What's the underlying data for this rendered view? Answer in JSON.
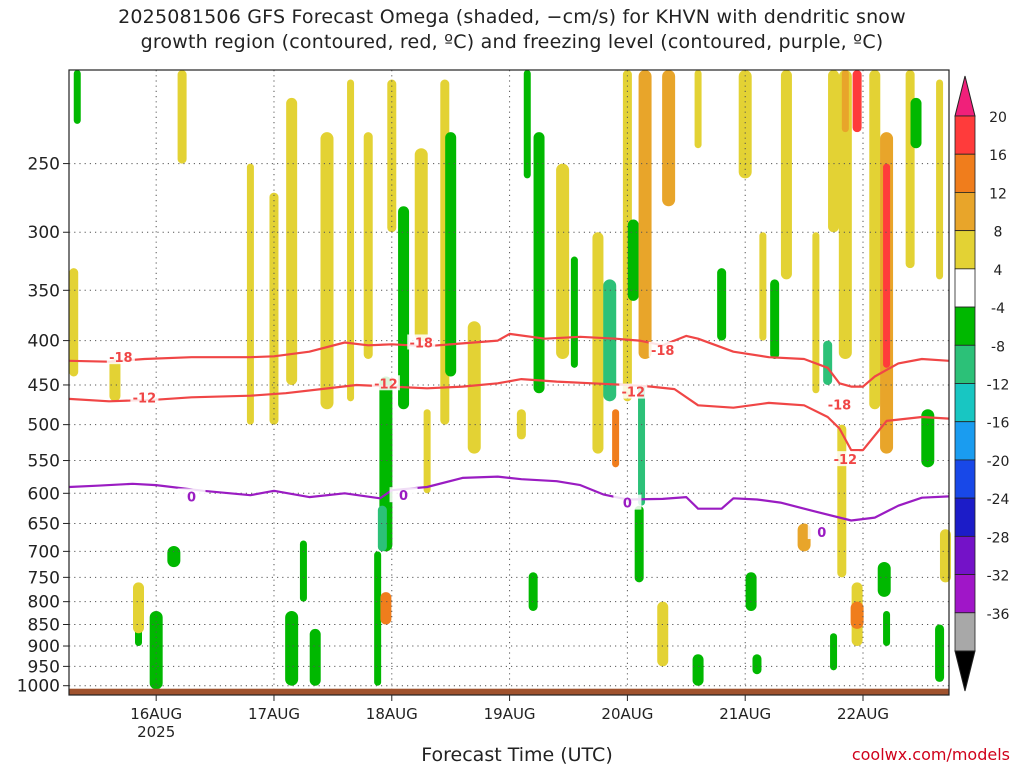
{
  "header": {
    "title_line_1": "2025081506 GFS Forecast Omega (shaded, −cm/s) for KHVN with dendritic snow",
    "title_line_2": "growth region (contoured, red, ºC) and freezing level (contoured, purple, ºC)"
  },
  "footer": {
    "xlabel": "Forecast Time (UTC)",
    "credit": "coolwx.com/models"
  },
  "colors": {
    "temp_contour": "#f04646",
    "freezing_contour": "#9a1cc2",
    "ground": "#a0522d"
  },
  "chart_data": {
    "type": "heatmap",
    "title": "2025081506 GFS Forecast Omega (shaded, −cm/s) for KHVN with dendritic snow growth region (contoured, red, ºC) and freezing level (contoured, purple, ºC)",
    "xlabel": "Forecast Time (UTC)",
    "ylabel": "",
    "x_range_day": [
      15.26,
      22.73
    ],
    "x_ticks": [
      {
        "day": 16,
        "label": "16AUG",
        "sub": "2025"
      },
      {
        "day": 17,
        "label": "17AUG",
        "sub": ""
      },
      {
        "day": 18,
        "label": "18AUG",
        "sub": ""
      },
      {
        "day": 19,
        "label": "19AUG",
        "sub": ""
      },
      {
        "day": 20,
        "label": "20AUG",
        "sub": ""
      },
      {
        "day": 21,
        "label": "21AUG",
        "sub": ""
      },
      {
        "day": 22,
        "label": "22AUG",
        "sub": ""
      }
    ],
    "y_scale": "log",
    "y_range_hpa": [
      1025,
      195
    ],
    "y_ticks": [
      250,
      300,
      350,
      400,
      450,
      500,
      550,
      600,
      650,
      700,
      750,
      800,
      850,
      900,
      950,
      1000
    ],
    "colorbar": {
      "levels": [
        {
          "label": "20",
          "color": "#ff3b3b"
        },
        {
          "label": "16",
          "color": "#f07d1c"
        },
        {
          "label": "12",
          "color": "#e8a52a"
        },
        {
          "label": "8",
          "color": "#e3d234"
        },
        {
          "label": "4",
          "color": "#ffffff"
        },
        {
          "label": "-4",
          "color": "#00b800"
        },
        {
          "label": "-8",
          "color": "#2cc178"
        },
        {
          "label": "-12",
          "color": "#18c6c2"
        },
        {
          "label": "-16",
          "color": "#1a9cf0"
        },
        {
          "label": "-20",
          "color": "#1848e8"
        },
        {
          "label": "-24",
          "color": "#1c1cc8"
        },
        {
          "label": "-28",
          "color": "#7412c8"
        },
        {
          "label": "-32",
          "color": "#a016c8"
        },
        {
          "label": "-36",
          "color": "#a8a8a8"
        }
      ],
      "top_triangle_color": "#f0207a",
      "bottom_triangle_color": "#000000"
    },
    "contours": [
      {
        "label": "-18",
        "kind": "temp",
        "x": [
          15.26,
          15.6,
          15.9,
          16.3,
          16.8,
          17.0,
          17.3,
          17.6,
          17.8,
          18.0,
          18.3,
          18.6,
          18.9,
          19.0,
          19.3,
          19.6,
          19.9,
          20.1,
          20.3,
          20.5,
          20.6,
          20.9,
          21.2,
          21.5,
          21.7,
          21.8,
          21.9,
          22.0,
          22.1,
          22.3,
          22.5,
          22.73
        ],
        "p": [
          422,
          423,
          420,
          418,
          418,
          417,
          412,
          402,
          405,
          404,
          406,
          403,
          400,
          393,
          398,
          396,
          398,
          400,
          405,
          395,
          398,
          412,
          418,
          420,
          430,
          448,
          452,
          452,
          440,
          425,
          420,
          422
        ],
        "label_pos": [
          {
            "x": 15.7,
            "p": 418
          },
          {
            "x": 18.25,
            "p": 402
          },
          {
            "x": 20.3,
            "p": 410
          },
          {
            "x": 21.8,
            "p": 474
          }
        ]
      },
      {
        "label": "-12",
        "kind": "temp",
        "x": [
          15.26,
          15.6,
          16.0,
          16.3,
          16.8,
          17.1,
          17.4,
          17.7,
          18.0,
          18.3,
          18.6,
          18.9,
          19.1,
          19.4,
          19.7,
          20.0,
          20.2,
          20.4,
          20.6,
          20.9,
          21.2,
          21.5,
          21.7,
          21.8,
          21.9,
          22.0,
          22.2,
          22.5,
          22.73
        ],
        "p": [
          467,
          470,
          468,
          465,
          463,
          460,
          455,
          450,
          452,
          454,
          452,
          448,
          443,
          446,
          448,
          450,
          452,
          455,
          475,
          478,
          472,
          475,
          490,
          505,
          535,
          535,
          495,
          490,
          492
        ],
        "label_pos": [
          {
            "x": 15.9,
            "p": 465
          },
          {
            "x": 17.95,
            "p": 448
          },
          {
            "x": 20.05,
            "p": 458
          },
          {
            "x": 21.85,
            "p": 548
          }
        ]
      },
      {
        "label": "0",
        "kind": "freezing",
        "x": [
          15.26,
          15.5,
          15.8,
          16.0,
          16.4,
          16.8,
          17.0,
          17.3,
          17.6,
          17.9,
          18.0,
          18.3,
          18.6,
          18.9,
          19.1,
          19.4,
          19.6,
          19.8,
          20.0,
          20.3,
          20.5,
          20.6,
          20.8,
          20.9,
          21.1,
          21.3,
          21.6,
          21.9,
          22.1,
          22.3,
          22.5,
          22.73
        ],
        "p": [
          590,
          588,
          585,
          587,
          596,
          603,
          596,
          606,
          600,
          608,
          595,
          590,
          576,
          574,
          578,
          581,
          587,
          602,
          610,
          609,
          606,
          625,
          625,
          608,
          610,
          615,
          630,
          645,
          640,
          620,
          607,
          605
        ],
        "label_pos": [
          {
            "x": 16.3,
            "p": 605
          },
          {
            "x": 18.1,
            "p": 603
          },
          {
            "x": 20.0,
            "p": 615
          },
          {
            "x": 21.65,
            "p": 665
          }
        ]
      }
    ],
    "omega_patches": [
      {
        "x": 15.33,
        "p0": 195,
        "p1": 225,
        "level": "-4"
      },
      {
        "x": 15.3,
        "p0": 330,
        "p1": 440,
        "level": "8"
      },
      {
        "x": 15.65,
        "p0": 420,
        "p1": 470,
        "level": "8"
      },
      {
        "x": 16.0,
        "p0": 820,
        "p1": 1010,
        "level": "-4"
      },
      {
        "x": 15.85,
        "p0": 860,
        "p1": 900,
        "level": "-4"
      },
      {
        "x": 16.22,
        "p0": 195,
        "p1": 250,
        "level": "8"
      },
      {
        "x": 15.85,
        "p0": 760,
        "p1": 870,
        "level": "8"
      },
      {
        "x": 16.15,
        "p0": 690,
        "p1": 730,
        "level": "-4"
      },
      {
        "x": 16.8,
        "p0": 250,
        "p1": 500,
        "level": "8"
      },
      {
        "x": 17.0,
        "p0": 270,
        "p1": 500,
        "level": "8"
      },
      {
        "x": 17.15,
        "p0": 210,
        "p1": 450,
        "level": "8"
      },
      {
        "x": 17.45,
        "p0": 230,
        "p1": 480,
        "level": "8"
      },
      {
        "x": 17.65,
        "p0": 200,
        "p1": 470,
        "level": "8"
      },
      {
        "x": 17.8,
        "p0": 230,
        "p1": 420,
        "level": "8"
      },
      {
        "x": 17.35,
        "p0": 860,
        "p1": 1000,
        "level": "-4"
      },
      {
        "x": 17.15,
        "p0": 820,
        "p1": 1000,
        "level": "-4"
      },
      {
        "x": 17.25,
        "p0": 680,
        "p1": 800,
        "level": "-4"
      },
      {
        "x": 18.0,
        "p0": 200,
        "p1": 300,
        "level": "8"
      },
      {
        "x": 18.1,
        "p0": 280,
        "p1": 480,
        "level": "-4"
      },
      {
        "x": 17.95,
        "p0": 440,
        "p1": 700,
        "level": "-4"
      },
      {
        "x": 17.88,
        "p0": 700,
        "p1": 1000,
        "level": "-4"
      },
      {
        "x": 17.92,
        "p0": 620,
        "p1": 700,
        "level": "-8"
      },
      {
        "x": 17.95,
        "p0": 780,
        "p1": 850,
        "level": "16"
      },
      {
        "x": 18.25,
        "p0": 240,
        "p1": 400,
        "level": "8"
      },
      {
        "x": 18.3,
        "p0": 480,
        "p1": 600,
        "level": "8"
      },
      {
        "x": 18.45,
        "p0": 200,
        "p1": 500,
        "level": "8"
      },
      {
        "x": 18.5,
        "p0": 230,
        "p1": 440,
        "level": "-4"
      },
      {
        "x": 18.7,
        "p0": 380,
        "p1": 540,
        "level": "8"
      },
      {
        "x": 19.15,
        "p0": 195,
        "p1": 260,
        "level": "-4"
      },
      {
        "x": 19.1,
        "p0": 480,
        "p1": 520,
        "level": "8"
      },
      {
        "x": 19.25,
        "p0": 230,
        "p1": 460,
        "level": "-4"
      },
      {
        "x": 19.45,
        "p0": 250,
        "p1": 420,
        "level": "8"
      },
      {
        "x": 19.55,
        "p0": 320,
        "p1": 430,
        "level": "-4"
      },
      {
        "x": 19.2,
        "p0": 740,
        "p1": 820,
        "level": "-4"
      },
      {
        "x": 19.75,
        "p0": 300,
        "p1": 540,
        "level": "8"
      },
      {
        "x": 19.85,
        "p0": 340,
        "p1": 470,
        "level": "-8"
      },
      {
        "x": 19.9,
        "p0": 480,
        "p1": 560,
        "level": "16"
      },
      {
        "x": 20.0,
        "p0": 195,
        "p1": 470,
        "level": "8"
      },
      {
        "x": 20.05,
        "p0": 290,
        "p1": 360,
        "level": "-4"
      },
      {
        "x": 20.15,
        "p0": 195,
        "p1": 420,
        "level": "12"
      },
      {
        "x": 20.12,
        "p0": 450,
        "p1": 620,
        "level": "-8"
      },
      {
        "x": 20.1,
        "p0": 620,
        "p1": 760,
        "level": "-4"
      },
      {
        "x": 20.3,
        "p0": 800,
        "p1": 950,
        "level": "8"
      },
      {
        "x": 20.35,
        "p0": 195,
        "p1": 280,
        "level": "12"
      },
      {
        "x": 20.6,
        "p0": 195,
        "p1": 240,
        "level": "8"
      },
      {
        "x": 20.8,
        "p0": 330,
        "p1": 400,
        "level": "-4"
      },
      {
        "x": 20.6,
        "p0": 920,
        "p1": 1000,
        "level": "-4"
      },
      {
        "x": 21.0,
        "p0": 195,
        "p1": 260,
        "level": "8"
      },
      {
        "x": 21.15,
        "p0": 300,
        "p1": 400,
        "level": "8"
      },
      {
        "x": 21.25,
        "p0": 340,
        "p1": 420,
        "level": "-4"
      },
      {
        "x": 21.35,
        "p0": 195,
        "p1": 340,
        "level": "8"
      },
      {
        "x": 21.5,
        "p0": 650,
        "p1": 700,
        "level": "12"
      },
      {
        "x": 21.6,
        "p0": 300,
        "p1": 460,
        "level": "8"
      },
      {
        "x": 21.7,
        "p0": 400,
        "p1": 450,
        "level": "-8"
      },
      {
        "x": 21.75,
        "p0": 195,
        "p1": 300,
        "level": "8"
      },
      {
        "x": 21.85,
        "p0": 195,
        "p1": 420,
        "level": "8"
      },
      {
        "x": 21.85,
        "p0": 195,
        "p1": 230,
        "level": "12"
      },
      {
        "x": 21.82,
        "p0": 500,
        "p1": 750,
        "level": "8"
      },
      {
        "x": 21.95,
        "p0": 760,
        "p1": 900,
        "level": "8"
      },
      {
        "x": 21.95,
        "p0": 800,
        "p1": 860,
        "level": "16"
      },
      {
        "x": 21.75,
        "p0": 870,
        "p1": 960,
        "level": "-4"
      },
      {
        "x": 21.95,
        "p0": 195,
        "p1": 230,
        "level": "20"
      },
      {
        "x": 22.1,
        "p0": 195,
        "p1": 480,
        "level": "8"
      },
      {
        "x": 22.2,
        "p0": 230,
        "p1": 540,
        "level": "12"
      },
      {
        "x": 22.2,
        "p0": 250,
        "p1": 430,
        "level": "20"
      },
      {
        "x": 22.4,
        "p0": 195,
        "p1": 330,
        "level": "8"
      },
      {
        "x": 22.45,
        "p0": 210,
        "p1": 240,
        "level": "-4"
      },
      {
        "x": 22.55,
        "p0": 480,
        "p1": 560,
        "level": "-4"
      },
      {
        "x": 22.65,
        "p0": 200,
        "p1": 340,
        "level": "8"
      },
      {
        "x": 22.65,
        "p0": 850,
        "p1": 990,
        "level": "-4"
      },
      {
        "x": 22.7,
        "p0": 660,
        "p1": 760,
        "level": "8"
      },
      {
        "x": 22.18,
        "p0": 720,
        "p1": 790,
        "level": "-4"
      },
      {
        "x": 22.2,
        "p0": 820,
        "p1": 900,
        "level": "-4"
      },
      {
        "x": 21.1,
        "p0": 920,
        "p1": 970,
        "level": "-4"
      },
      {
        "x": 21.05,
        "p0": 740,
        "p1": 820,
        "level": "-4"
      }
    ]
  }
}
